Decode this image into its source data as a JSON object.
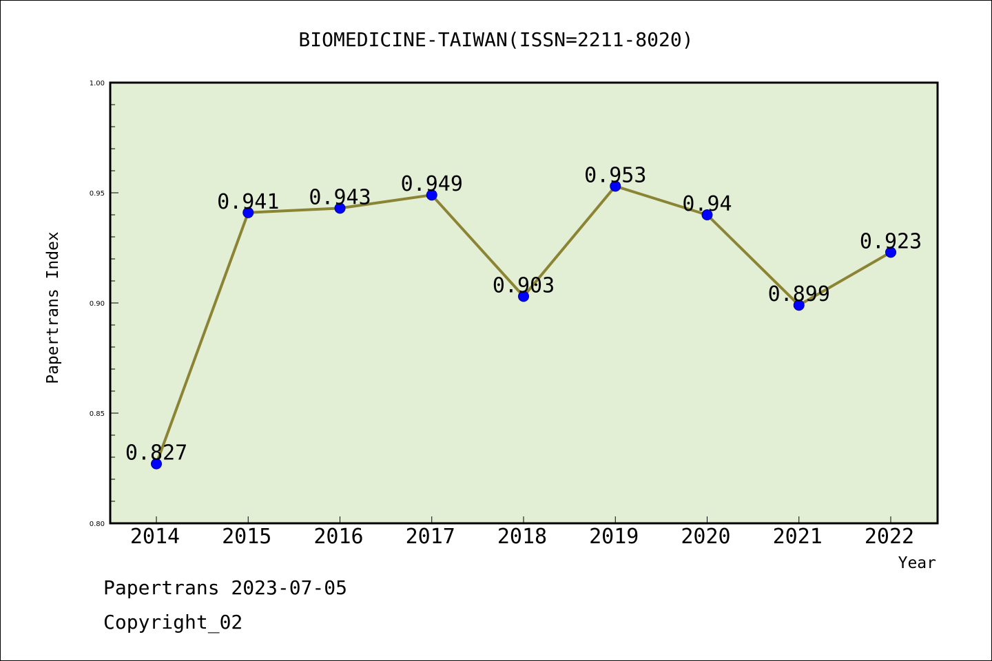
{
  "chart_data": {
    "type": "line",
    "title": "BIOMEDICINE-TAIWAN(ISSN=2211-8020)",
    "xlabel": "Year",
    "ylabel": "Papertrans Index",
    "categories": [
      "2014",
      "2015",
      "2016",
      "2017",
      "2018",
      "2019",
      "2020",
      "2021",
      "2022"
    ],
    "values": [
      0.827,
      0.941,
      0.943,
      0.949,
      0.903,
      0.953,
      0.94,
      0.899,
      0.923
    ],
    "data_labels": [
      "0.827",
      "0.941",
      "0.943",
      "0.949",
      "0.903",
      "0.953",
      "0.94",
      "0.899",
      "0.923"
    ],
    "ylim": [
      0.8,
      1.0
    ],
    "yticks": [
      "0.80",
      "0.85",
      "0.90",
      "0.95",
      "1.00"
    ],
    "grid": false,
    "legend": "none",
    "colors": {
      "plot_background": "#e2efd5",
      "line": "#8b8434",
      "marker": "#0000ff",
      "axis": "#000000"
    }
  },
  "footer": {
    "date_line": "Papertrans 2023-07-05",
    "copyright": "Copyright_02"
  }
}
